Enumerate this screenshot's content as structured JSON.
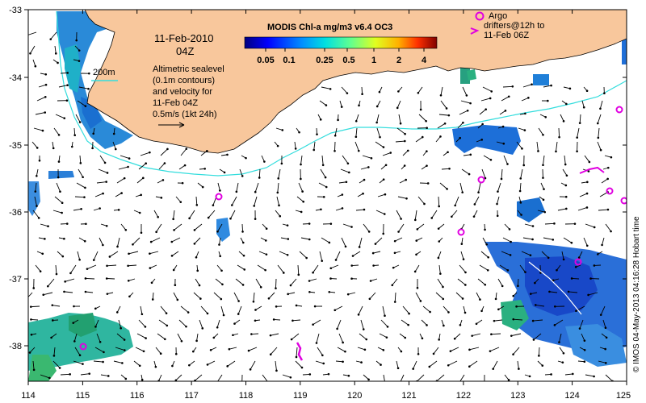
{
  "map": {
    "date_title": "11-Feb-2010",
    "hour": "04Z",
    "isobath_label": "200m",
    "annotation_lines": [
      "Altimetric sealevel",
      "(0.1m contours)",
      "and velocity for",
      "11-Feb 04Z"
    ],
    "velocity_scale_label": "0.5m/s (1kt 24h)",
    "colorbar_title": "MODIS Chl-a mg/m3 v6.4 OC3",
    "colorbar_ticks": [
      "0.05",
      "0.1",
      "0.25",
      "0.5",
      "1",
      "2",
      "4"
    ],
    "legend_lines": [
      "Argo",
      "drifters@12h to",
      "11-Feb 06Z"
    ],
    "credit": "© IMOS 04-May-2013 04:16:28 Hobart time",
    "lon_ticks": [
      "114",
      "115",
      "116",
      "117",
      "118",
      "119",
      "120",
      "121",
      "122",
      "123",
      "124",
      "125"
    ],
    "lat_ticks": [
      "-33",
      "-34",
      "-35",
      "-36",
      "-37",
      "-38"
    ],
    "colors": {
      "land": "#f8c79c",
      "isobath": "#33dddd",
      "argo_marker": "#e000e0",
      "arrows": "#000000"
    }
  }
}
